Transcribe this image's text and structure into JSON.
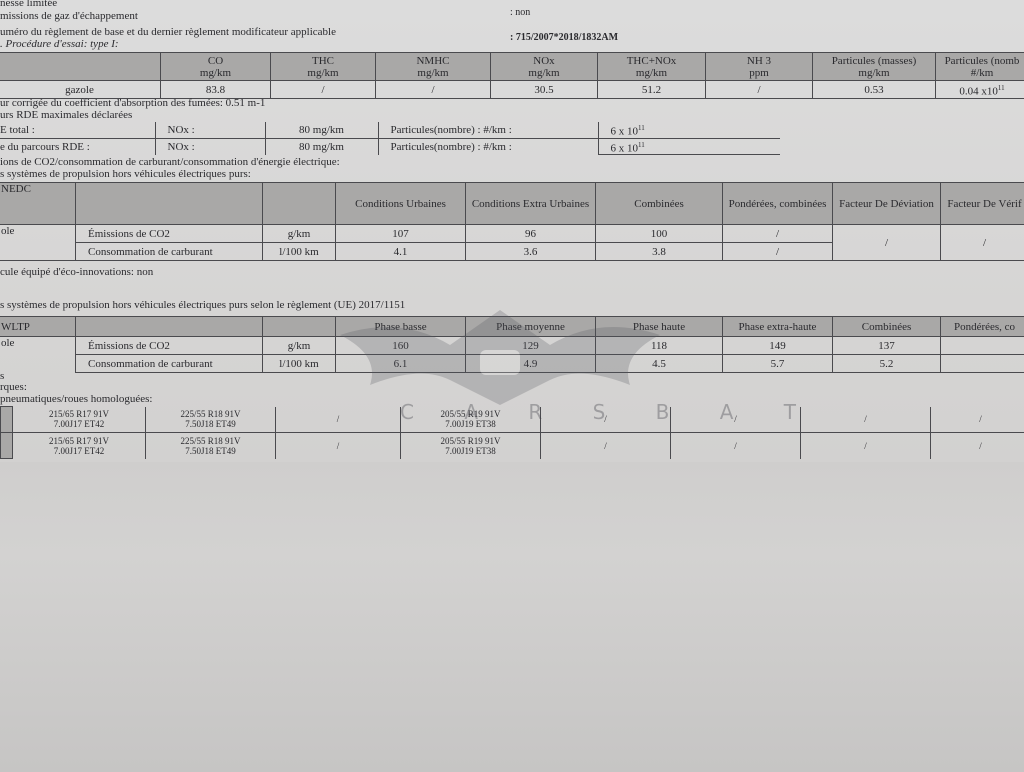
{
  "header_lines": {
    "l1": "nesse limitée",
    "l2": "missions de gaz d'échappement",
    "l2_value": ": non",
    "l3": "uméro du règlement de base et du dernier règlement modificateur applicable",
    "l3_value": ": 715/2007*2018/1832AM",
    "l4": ". Procédure d'essai: type I:"
  },
  "type1": {
    "columns": [
      {
        "name": "CO",
        "unit": "mg/km"
      },
      {
        "name": "THC",
        "unit": "mg/km"
      },
      {
        "name": "NMHC",
        "unit": "mg/km"
      },
      {
        "name": "NOx",
        "unit": "mg/km"
      },
      {
        "name": "THC+NOx",
        "unit": "mg/km"
      },
      {
        "name": "NH 3",
        "unit": "ppm"
      },
      {
        "name": "Particules (masses)",
        "unit": "mg/km"
      },
      {
        "name": "Particules (nomb",
        "unit": "#/km"
      }
    ],
    "row_label": "gazole",
    "values": [
      "83.8",
      "/",
      "/",
      "30.5",
      "51.2",
      "/",
      "0.53",
      "0.04 x10"
    ],
    "exp": "11"
  },
  "smoke": "ur corrigée du coefficient d'absorption des fumées: 0.51 m-1",
  "rde": {
    "title": "urs RDE maximales déclarées",
    "rows": [
      {
        "label": "E total :",
        "nox": "NOx :",
        "nox_val": "80 mg/km",
        "pn": "Particules(nombre) : #/km :",
        "pn_val": "6 x 10",
        "exp": "11"
      },
      {
        "label": "e du parcours RDE      :",
        "nox": "NOx :",
        "nox_val": "80 mg/km",
        "pn": "Particules(nombre) : #/km :",
        "pn_val": "6 x 10",
        "exp": "11"
      }
    ]
  },
  "co2_title": "ions de CO2/consommation de carburant/consommation d'énergie électrique:",
  "nedc_title": "s systèmes de propulsion hors véhicules électriques purs:",
  "nedc": {
    "label": "NEDC",
    "row_label": "ole",
    "headers": [
      "Conditions Urbaines",
      "Conditions Extra Urbaines",
      "Combinées",
      "Pondérées, combinées",
      "Facteur De Déviation",
      "Facteur De Vérif"
    ],
    "rows": [
      {
        "label": "Émissions de CO2",
        "unit": "g/km",
        "values": [
          "107",
          "96",
          "100",
          "/"
        ]
      },
      {
        "label": "Consommation de carburant",
        "unit": "l/100 km",
        "values": [
          "4.1",
          "3.6",
          "3.8",
          "/"
        ]
      }
    ],
    "deviation": "/",
    "verif": "/"
  },
  "eco": "cule équipé d'éco-innovations: non",
  "wltp_title": "s systèmes de propulsion hors véhicules électriques purs selon le règlement (UE) 2017/1151",
  "wltp": {
    "label": "WLTP",
    "row_label": "ole",
    "headers": [
      "Phase basse",
      "Phase moyenne",
      "Phase haute",
      "Phase extra-haute",
      "Combinées",
      "Pondérées, co"
    ],
    "rows": [
      {
        "label": "Émissions de CO2",
        "unit": "g/km",
        "values": [
          "160",
          "129",
          "118",
          "149",
          "137",
          ""
        ]
      },
      {
        "label": "Consommation de carburant",
        "unit": "l/100 km",
        "values": [
          "6.1",
          "4.9",
          "4.5",
          "5.7",
          "5.2",
          ""
        ]
      }
    ]
  },
  "after_wltp": "s",
  "remarks": "rques:",
  "tyres_title": "pneumatiques/roues homologuées:",
  "tyres": [
    [
      "215/65 R17 91V\n7.00J17 ET42",
      "225/55 R18 91V\n7.50J18 ET49",
      "/",
      "205/55 R19 91V\n7.00J19 ET38",
      "/",
      "/",
      "/",
      "/"
    ],
    [
      "215/65 R17 91V\n7.00J17 ET42",
      "225/55 R18 91V\n7.50J18 ET49",
      "/",
      "205/55 R19 91V\n7.00J19 ET38",
      "/",
      "/",
      "/",
      "/"
    ]
  ],
  "watermark": "CARSBAT"
}
